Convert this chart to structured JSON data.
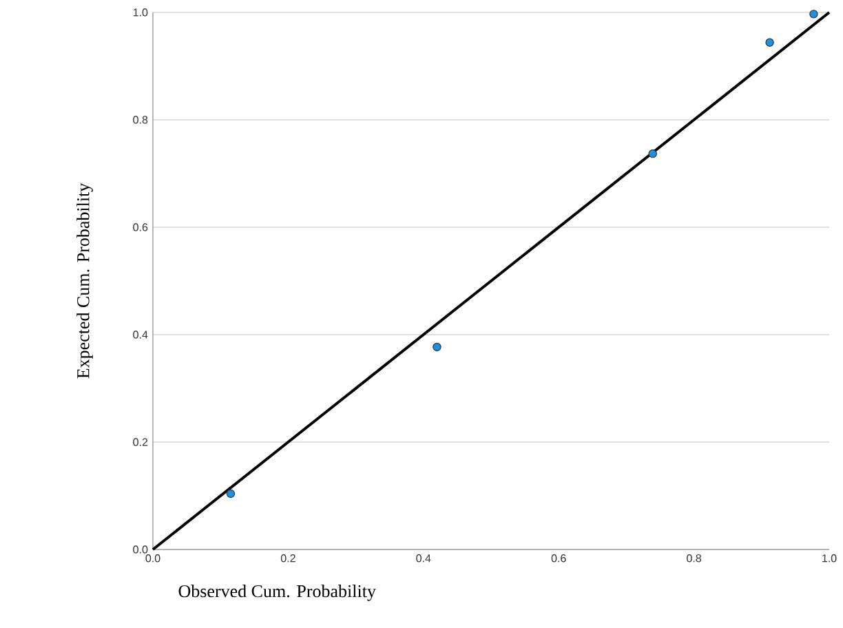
{
  "chart_data": {
    "type": "scatter",
    "xlabel": "Observed Cum. Probability",
    "ylabel": "Expected Cum. Probability",
    "series": [
      {
        "color": "#1f8fe0",
        "x": [
          0.115,
          0.42,
          0.739,
          0.912,
          0.977
        ],
        "values": [
          0.104,
          0.377,
          0.737,
          0.944,
          0.997
        ]
      },
      {
        "type": "line",
        "marker": "none",
        "color": "#000000",
        "x": [
          0,
          1
        ],
        "values": [
          0,
          1
        ]
      }
    ],
    "xlim": [
      0,
      1
    ],
    "ylim": [
      0,
      1
    ],
    "xticks": [
      {
        "value": 0,
        "label": "0.0"
      },
      0.2,
      0.4,
      0.6,
      0.8,
      {
        "value": 1,
        "label": "1.0"
      }
    ],
    "yticks": [
      {
        "value": 0,
        "label": "0.0"
      },
      0.2,
      0.4,
      0.6,
      0.8,
      {
        "value": 1,
        "label": "1.0"
      }
    ],
    "grid": "y",
    "marker": "circle"
  }
}
